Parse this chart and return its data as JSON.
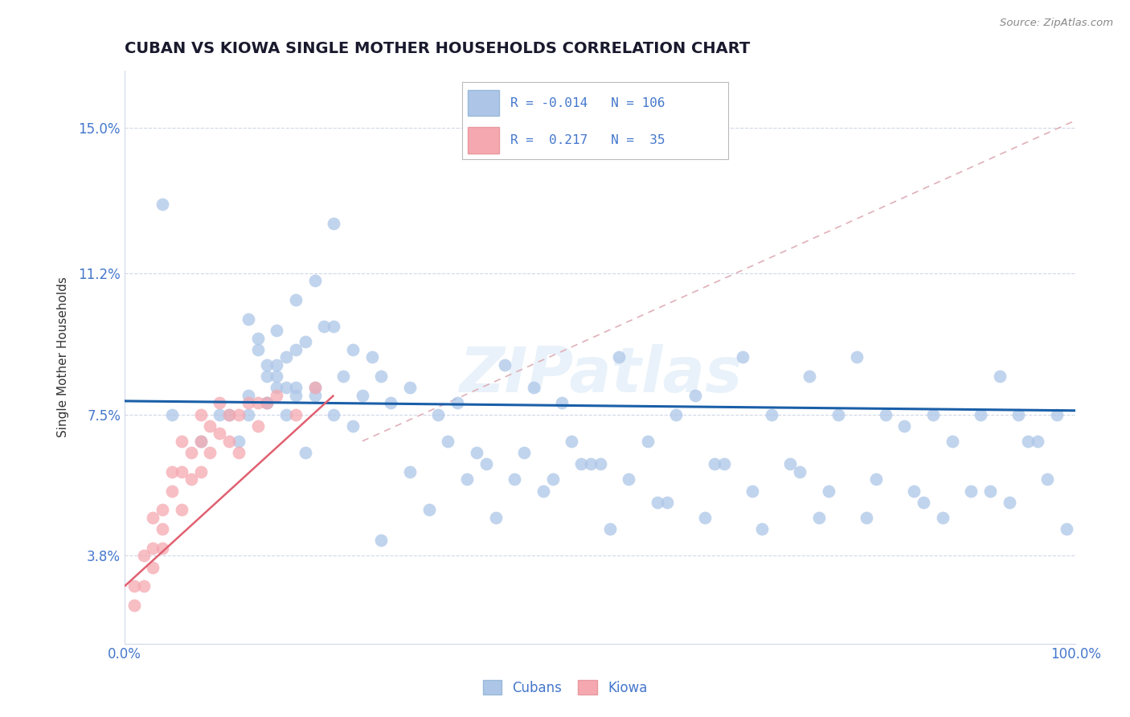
{
  "title": "CUBAN VS KIOWA SINGLE MOTHER HOUSEHOLDS CORRELATION CHART",
  "source": "Source: ZipAtlas.com",
  "ylabel": "Single Mother Households",
  "xlim": [
    0.0,
    1.0
  ],
  "ylim": [
    0.015,
    0.165
  ],
  "yticks": [
    0.038,
    0.075,
    0.112,
    0.15
  ],
  "ytick_labels": [
    "3.8%",
    "7.5%",
    "11.2%",
    "15.0%"
  ],
  "xticks": [
    0.0,
    1.0
  ],
  "xtick_labels": [
    "0.0%",
    "100.0%"
  ],
  "legend_r_cuban": "-0.014",
  "legend_n_cuban": "106",
  "legend_r_kiowa": "0.217",
  "legend_n_kiowa": "35",
  "cuban_color": "#adc6e8",
  "kiowa_color": "#f5a8b0",
  "cuban_line_color": "#1a5fa8",
  "kiowa_line_color": "#e06070",
  "ref_line_color": "#e0b0b8",
  "watermark": "ZIPatlas",
  "title_color": "#1a1a2e",
  "axis_label_color": "#4477cc",
  "tick_color": "#4477cc",
  "grid_color": "#d0d8e8",
  "legend_text_color": "#4477cc",
  "cuban_scatter_x": [
    0.04,
    0.22,
    0.2,
    0.18,
    0.13,
    0.16,
    0.14,
    0.14,
    0.15,
    0.22,
    0.15,
    0.18,
    0.17,
    0.21,
    0.19,
    0.16,
    0.18,
    0.2,
    0.16,
    0.17,
    0.15,
    0.13,
    0.16,
    0.23,
    0.24,
    0.26,
    0.17,
    0.18,
    0.2,
    0.22,
    0.25,
    0.28,
    0.3,
    0.33,
    0.35,
    0.37,
    0.4,
    0.43,
    0.42,
    0.46,
    0.48,
    0.5,
    0.52,
    0.47,
    0.55,
    0.58,
    0.6,
    0.63,
    0.65,
    0.68,
    0.7,
    0.72,
    0.75,
    0.77,
    0.8,
    0.82,
    0.85,
    0.87,
    0.9,
    0.92,
    0.94,
    0.96,
    0.98,
    0.05,
    0.08,
    0.1,
    0.11,
    0.12,
    0.13,
    0.15,
    0.19,
    0.24,
    0.27,
    0.3,
    0.34,
    0.38,
    0.41,
    0.44,
    0.49,
    0.53,
    0.57,
    0.62,
    0.66,
    0.71,
    0.74,
    0.78,
    0.83,
    0.86,
    0.89,
    0.93,
    0.95,
    0.97,
    0.99,
    0.27,
    0.32,
    0.36,
    0.39,
    0.45,
    0.51,
    0.56,
    0.61,
    0.67,
    0.73,
    0.79,
    0.84,
    0.91
  ],
  "cuban_scatter_y": [
    0.13,
    0.125,
    0.11,
    0.105,
    0.1,
    0.097,
    0.092,
    0.095,
    0.088,
    0.098,
    0.085,
    0.092,
    0.09,
    0.098,
    0.094,
    0.085,
    0.082,
    0.08,
    0.088,
    0.082,
    0.078,
    0.08,
    0.082,
    0.085,
    0.092,
    0.09,
    0.075,
    0.08,
    0.082,
    0.075,
    0.08,
    0.078,
    0.082,
    0.075,
    0.078,
    0.065,
    0.088,
    0.082,
    0.065,
    0.078,
    0.062,
    0.062,
    0.09,
    0.068,
    0.068,
    0.075,
    0.08,
    0.062,
    0.09,
    0.075,
    0.062,
    0.085,
    0.075,
    0.09,
    0.075,
    0.072,
    0.075,
    0.068,
    0.075,
    0.085,
    0.075,
    0.068,
    0.075,
    0.075,
    0.068,
    0.075,
    0.075,
    0.068,
    0.075,
    0.078,
    0.065,
    0.072,
    0.085,
    0.06,
    0.068,
    0.062,
    0.058,
    0.055,
    0.062,
    0.058,
    0.052,
    0.062,
    0.055,
    0.06,
    0.055,
    0.048,
    0.055,
    0.048,
    0.055,
    0.052,
    0.068,
    0.058,
    0.045,
    0.042,
    0.05,
    0.058,
    0.048,
    0.058,
    0.045,
    0.052,
    0.048,
    0.045,
    0.048,
    0.058,
    0.052,
    0.055
  ],
  "kiowa_scatter_x": [
    0.01,
    0.01,
    0.02,
    0.02,
    0.03,
    0.03,
    0.03,
    0.04,
    0.04,
    0.04,
    0.05,
    0.05,
    0.06,
    0.06,
    0.06,
    0.07,
    0.07,
    0.08,
    0.08,
    0.08,
    0.09,
    0.09,
    0.1,
    0.1,
    0.11,
    0.11,
    0.12,
    0.12,
    0.13,
    0.14,
    0.14,
    0.15,
    0.16,
    0.18,
    0.2
  ],
  "kiowa_scatter_y": [
    0.03,
    0.025,
    0.038,
    0.03,
    0.048,
    0.04,
    0.035,
    0.05,
    0.04,
    0.045,
    0.06,
    0.055,
    0.05,
    0.068,
    0.06,
    0.065,
    0.058,
    0.068,
    0.075,
    0.06,
    0.072,
    0.065,
    0.07,
    0.078,
    0.075,
    0.068,
    0.075,
    0.065,
    0.078,
    0.072,
    0.078,
    0.078,
    0.08,
    0.075,
    0.082
  ],
  "cuban_line_y_start": 0.0785,
  "cuban_line_y_end": 0.076,
  "kiowa_line_x_start": 0.0,
  "kiowa_line_x_end": 0.22,
  "kiowa_line_y_start": 0.03,
  "kiowa_line_y_end": 0.08,
  "ref_line_x": [
    0.25,
    1.0
  ],
  "ref_line_y": [
    0.068,
    0.152
  ]
}
